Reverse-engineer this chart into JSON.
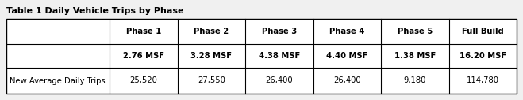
{
  "title": "Table 1 Daily Vehicle Trips by Phase",
  "col_headers": [
    "Phase 1",
    "Phase 2",
    "Phase 3",
    "Phase 4",
    "Phase 5",
    "Full Build"
  ],
  "col_subheaders": [
    "2.76 MSF",
    "3.28 MSF",
    "4.38 MSF",
    "4.40 MSF",
    "1.38 MSF",
    "16.20 MSF"
  ],
  "row_label": "New Average Daily Trips",
  "row_values": [
    "25,520",
    "27,550",
    "26,400",
    "26,400",
    "9,180",
    "114,780"
  ],
  "bg_color": "#f0f0f0",
  "title_fontsize": 8.0,
  "header_fontsize": 7.2,
  "data_fontsize": 7.2
}
